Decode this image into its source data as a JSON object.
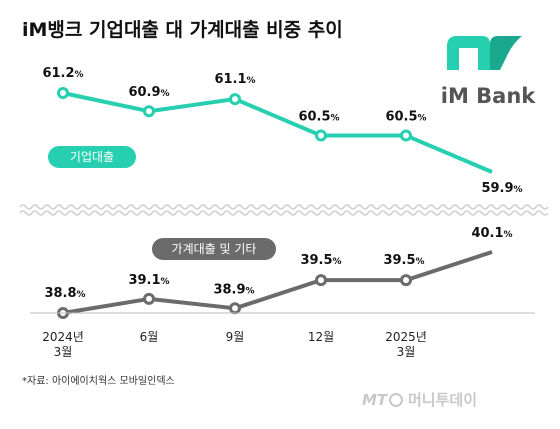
{
  "title": "iM뱅크 기업대출 대 가계대출 비중 추이",
  "logo_text": "iM Bank",
  "source": "*자료: 아이에이치웍스 모바일인덱스",
  "watermark": "머니투데이",
  "watermark_mark": "MT",
  "colors": {
    "corporate": "#26cfb0",
    "household": "#6b6b6b",
    "logo_green": "#26cfb0",
    "logo_dark": "#1aa88e"
  },
  "chart_data": [
    {
      "type": "line",
      "series": [
        {
          "name": "기업대출",
          "values": [
            61.2,
            60.9,
            61.1,
            60.5,
            60.5,
            59.9
          ],
          "unit": "%"
        }
      ],
      "categories": [
        "2024년 3월",
        "6월",
        "9월",
        "12월",
        "2025년 3월",
        ""
      ]
    },
    {
      "type": "line",
      "series": [
        {
          "name": "가계대출 및 기타",
          "values": [
            38.8,
            39.1,
            38.9,
            39.5,
            39.5,
            40.1
          ],
          "unit": "%"
        }
      ],
      "categories": [
        "2024년 3월",
        "6월",
        "9월",
        "12월",
        "2025년 3월",
        ""
      ],
      "x_tick_labels": [
        [
          "2024년",
          "3월"
        ],
        [
          "6월"
        ],
        [
          "9월"
        ],
        [
          "12월"
        ],
        [
          "2025년",
          "3월"
        ]
      ]
    }
  ]
}
